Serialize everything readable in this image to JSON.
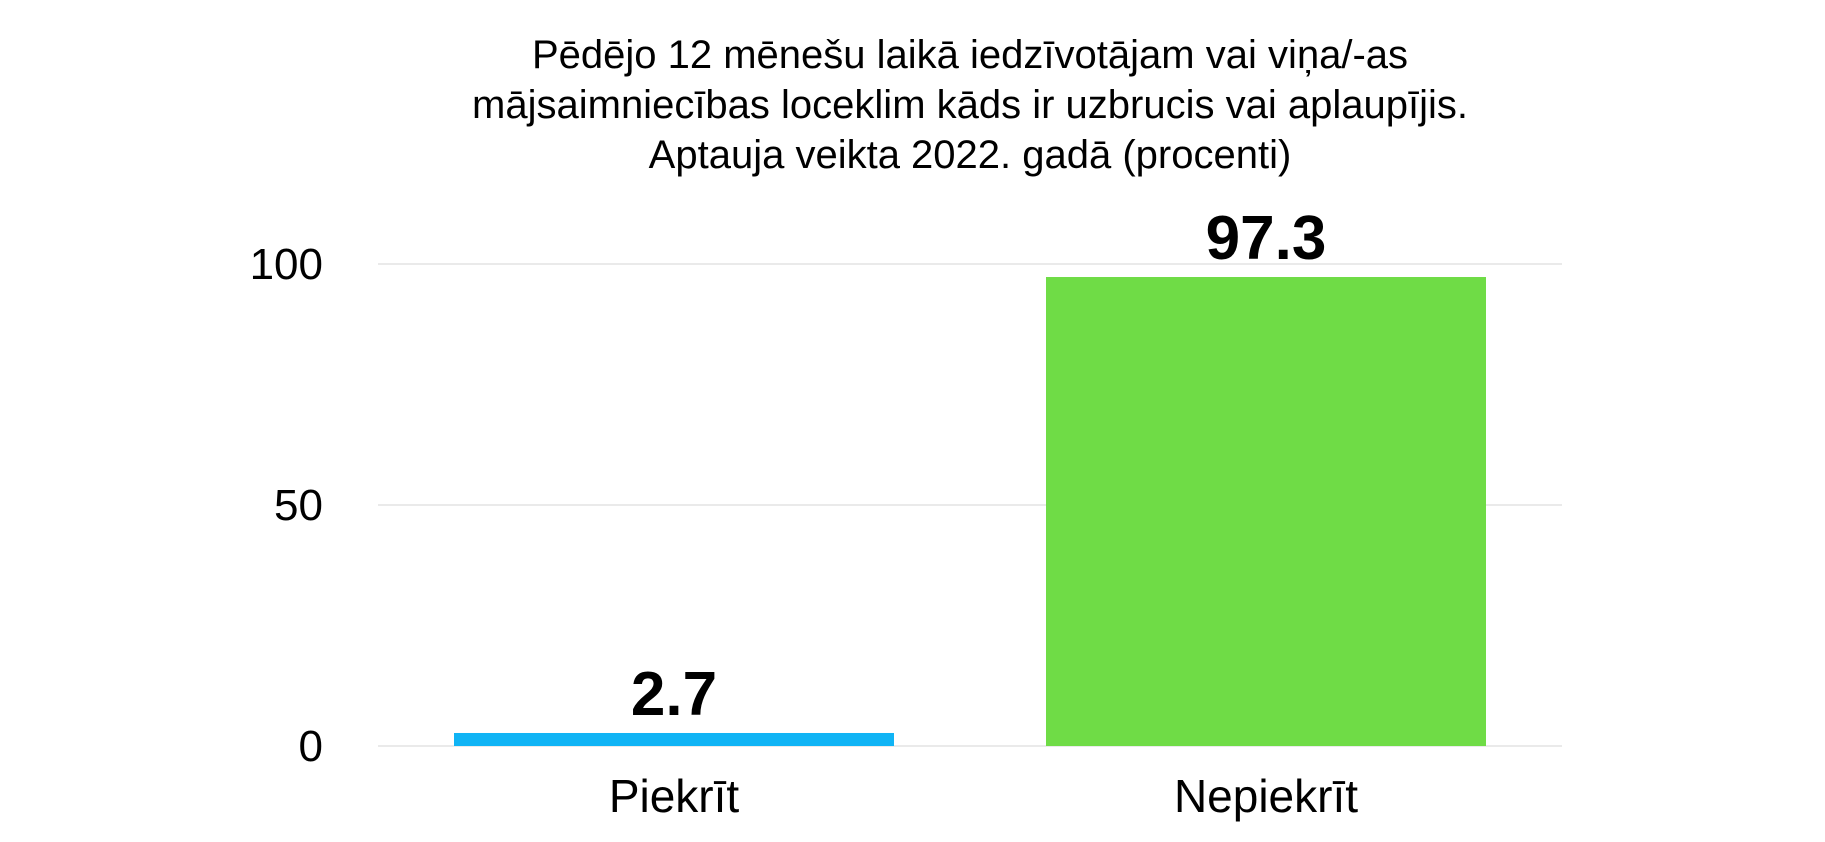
{
  "chart_data": {
    "type": "bar",
    "title_lines": [
      "Pēdējo 12 mēnešu laikā iedzīvotājam vai viņa/-as",
      "mājsaimniecības loceklim kāds ir uzbrucis vai aplaupījis.",
      "Aptauja veikta 2022. gadā (procenti)"
    ],
    "categories": [
      "Piekrīt",
      "Nepiekrīt"
    ],
    "values": [
      2.7,
      97.3
    ],
    "value_labels": [
      "2.7",
      "97.3"
    ],
    "colors": [
      "#10b4f5",
      "#6fdc46"
    ],
    "yticks": [
      0,
      50,
      100
    ],
    "ytick_labels": [
      "0",
      "50",
      "100"
    ],
    "ylim": [
      0,
      100
    ],
    "grid": true,
    "xlabel": "",
    "ylabel": ""
  }
}
